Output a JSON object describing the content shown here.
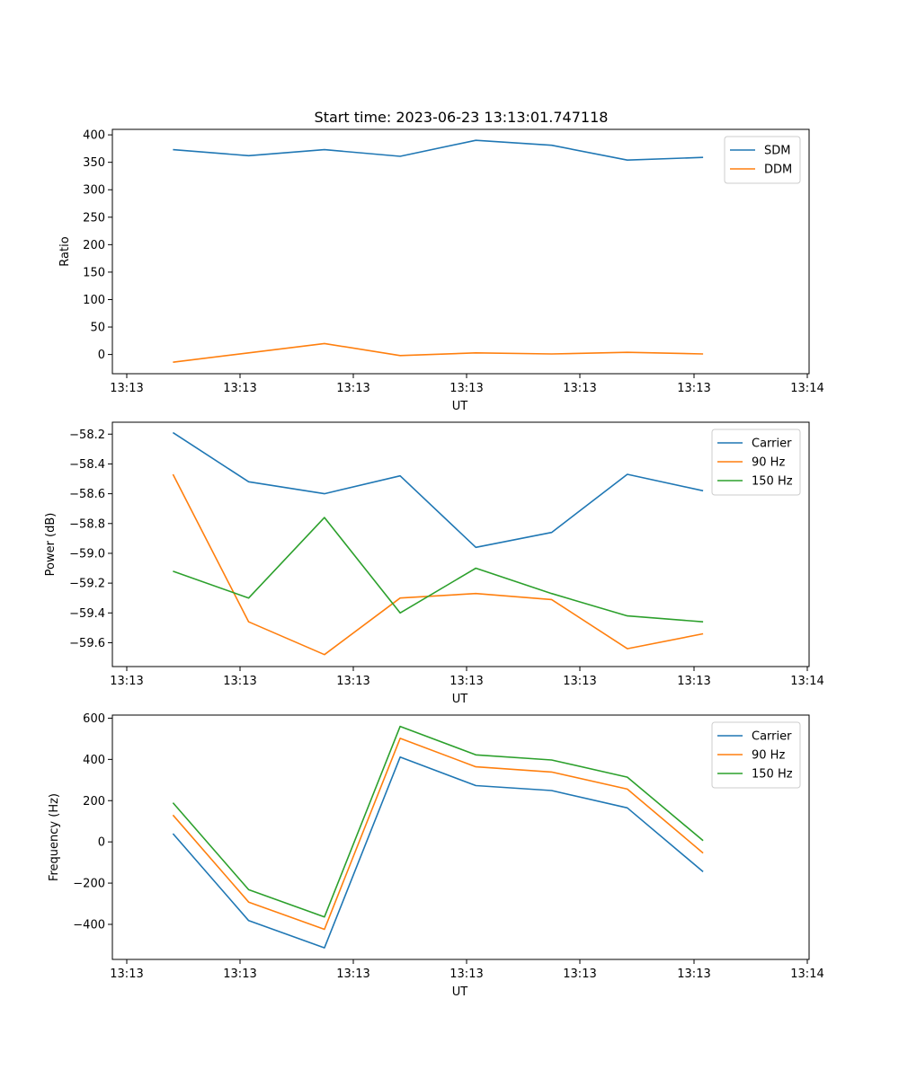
{
  "figure": {
    "title": "Start time: 2023-06-23 13:13:01.747118"
  },
  "chart_data": [
    {
      "type": "line",
      "title": "Start time: 2023-06-23 13:13:01.747118",
      "xlabel": "UT",
      "ylabel": "Ratio",
      "x_tick_labels": [
        "13:13",
        "13:13",
        "13:13",
        "13:13",
        "13:13",
        "13:13",
        "13:14"
      ],
      "y_ticks": [
        0,
        50,
        100,
        150,
        200,
        250,
        300,
        350,
        400
      ],
      "ylim": [
        -35,
        410
      ],
      "grid": false,
      "legend": "top-right",
      "x": [
        1,
        2,
        3,
        4,
        5,
        6,
        7,
        8
      ],
      "series": [
        {
          "name": "SDM",
          "color": "#1f77b4",
          "values": [
            373,
            362,
            373,
            361,
            390,
            381,
            354,
            359
          ]
        },
        {
          "name": "DDM",
          "color": "#ff7f0e",
          "values": [
            -14,
            3,
            20,
            -2,
            3,
            1,
            4,
            1
          ]
        }
      ]
    },
    {
      "type": "line",
      "title": "",
      "xlabel": "UT",
      "ylabel": "Power (dB)",
      "x_tick_labels": [
        "13:13",
        "13:13",
        "13:13",
        "13:13",
        "13:13",
        "13:13",
        "13:14"
      ],
      "y_ticks": [
        -59.6,
        -59.4,
        -59.2,
        -59.0,
        -58.8,
        -58.6,
        -58.4,
        -58.2
      ],
      "y_tick_labels": [
        "−59.6",
        "−59.4",
        "−59.2",
        "−59.0",
        "−58.8",
        "−58.6",
        "−58.4",
        "−58.2"
      ],
      "ylim": [
        -59.76,
        -58.12
      ],
      "grid": false,
      "legend": "top-right",
      "x": [
        1,
        2,
        3,
        4,
        5,
        6,
        7,
        8
      ],
      "series": [
        {
          "name": "Carrier",
          "color": "#1f77b4",
          "values": [
            -58.19,
            -58.52,
            -58.6,
            -58.48,
            -58.96,
            -58.86,
            -58.47,
            -58.58
          ]
        },
        {
          "name": "90 Hz",
          "color": "#ff7f0e",
          "values": [
            -58.47,
            -59.46,
            -59.68,
            -59.3,
            -59.27,
            -59.31,
            -59.64,
            -59.54
          ]
        },
        {
          "name": "150 Hz",
          "color": "#2ca02c",
          "values": [
            -59.12,
            -59.3,
            -58.76,
            -59.4,
            -59.1,
            -59.27,
            -59.42,
            -59.46
          ]
        }
      ]
    },
    {
      "type": "line",
      "title": "",
      "xlabel": "UT",
      "ylabel": "Frequency (Hz)",
      "x_tick_labels": [
        "13:13",
        "13:13",
        "13:13",
        "13:13",
        "13:13",
        "13:13",
        "13:14"
      ],
      "y_ticks": [
        -400,
        -200,
        0,
        200,
        400,
        600
      ],
      "y_tick_labels": [
        "−400",
        "−200",
        "0",
        "200",
        "400",
        "600"
      ],
      "ylim": [
        -570,
        615
      ],
      "grid": false,
      "legend": "top-right",
      "x": [
        1,
        2,
        3,
        4,
        5,
        6,
        7,
        8
      ],
      "series": [
        {
          "name": "Carrier",
          "color": "#1f77b4",
          "values": [
            40,
            -382,
            -514,
            411,
            273,
            249,
            165,
            -145
          ]
        },
        {
          "name": "90 Hz",
          "color": "#ff7f0e",
          "values": [
            130,
            -292,
            -424,
            502,
            364,
            339,
            256,
            -54
          ]
        },
        {
          "name": "150 Hz",
          "color": "#2ca02c",
          "values": [
            190,
            -232,
            -364,
            560,
            422,
            397,
            314,
            6
          ]
        }
      ]
    }
  ]
}
